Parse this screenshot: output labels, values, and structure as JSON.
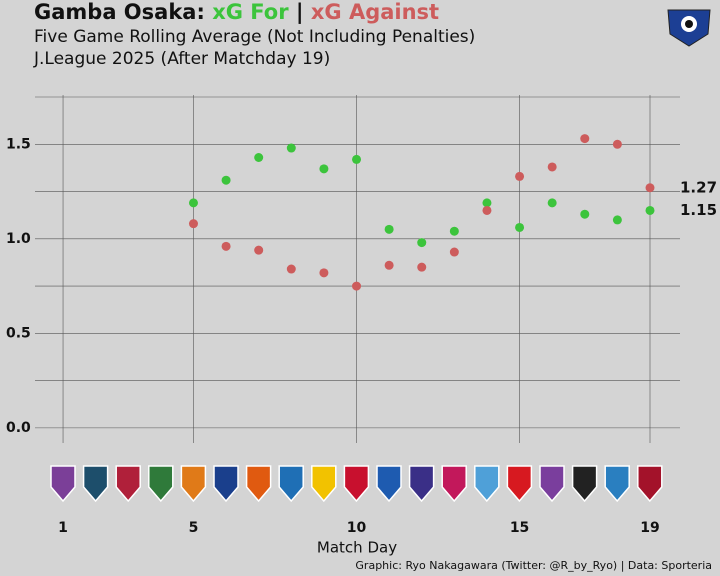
{
  "chart_data": {
    "type": "line",
    "title_prefix": "Gamba Osaka:",
    "title_separator": "|",
    "subtitle": "Five Game Rolling Average (Not Including Penalties)",
    "subtitle2": "J.League 2025 (After Matchday 19)",
    "x_label": "Match Day",
    "caption": "Graphic: Ryo Nakagawara (Twitter: @R_by_Ryo) | Data: Sporteria",
    "x": [
      5,
      6,
      7,
      8,
      9,
      10,
      11,
      12,
      13,
      14,
      15,
      16,
      17,
      18,
      19
    ],
    "series": [
      {
        "name": "xG For",
        "color": "#3cc43c",
        "values": [
          1.19,
          1.31,
          1.43,
          1.48,
          1.37,
          1.42,
          1.05,
          0.98,
          1.04,
          1.19,
          1.06,
          1.19,
          1.13,
          1.1,
          1.15
        ]
      },
      {
        "name": "xG Against",
        "color": "#cd5c5c",
        "values": [
          1.08,
          0.96,
          0.94,
          0.84,
          0.82,
          0.75,
          0.86,
          0.85,
          0.93,
          1.15,
          1.33,
          1.38,
          1.53,
          1.5,
          1.27
        ]
      }
    ],
    "xlim": [
      0.14,
      19.92
    ],
    "xticks": [
      1,
      5,
      10,
      15,
      19
    ],
    "ylim": [
      -0.08,
      1.75
    ],
    "yticks": [
      {
        "value": 0,
        "label": "0.0"
      },
      0.5,
      {
        "value": 1,
        "label": "1.0"
      },
      1.5
    ],
    "yminor": [
      0.25,
      0.75,
      1.25,
      1.75
    ],
    "grid": true
  }
}
